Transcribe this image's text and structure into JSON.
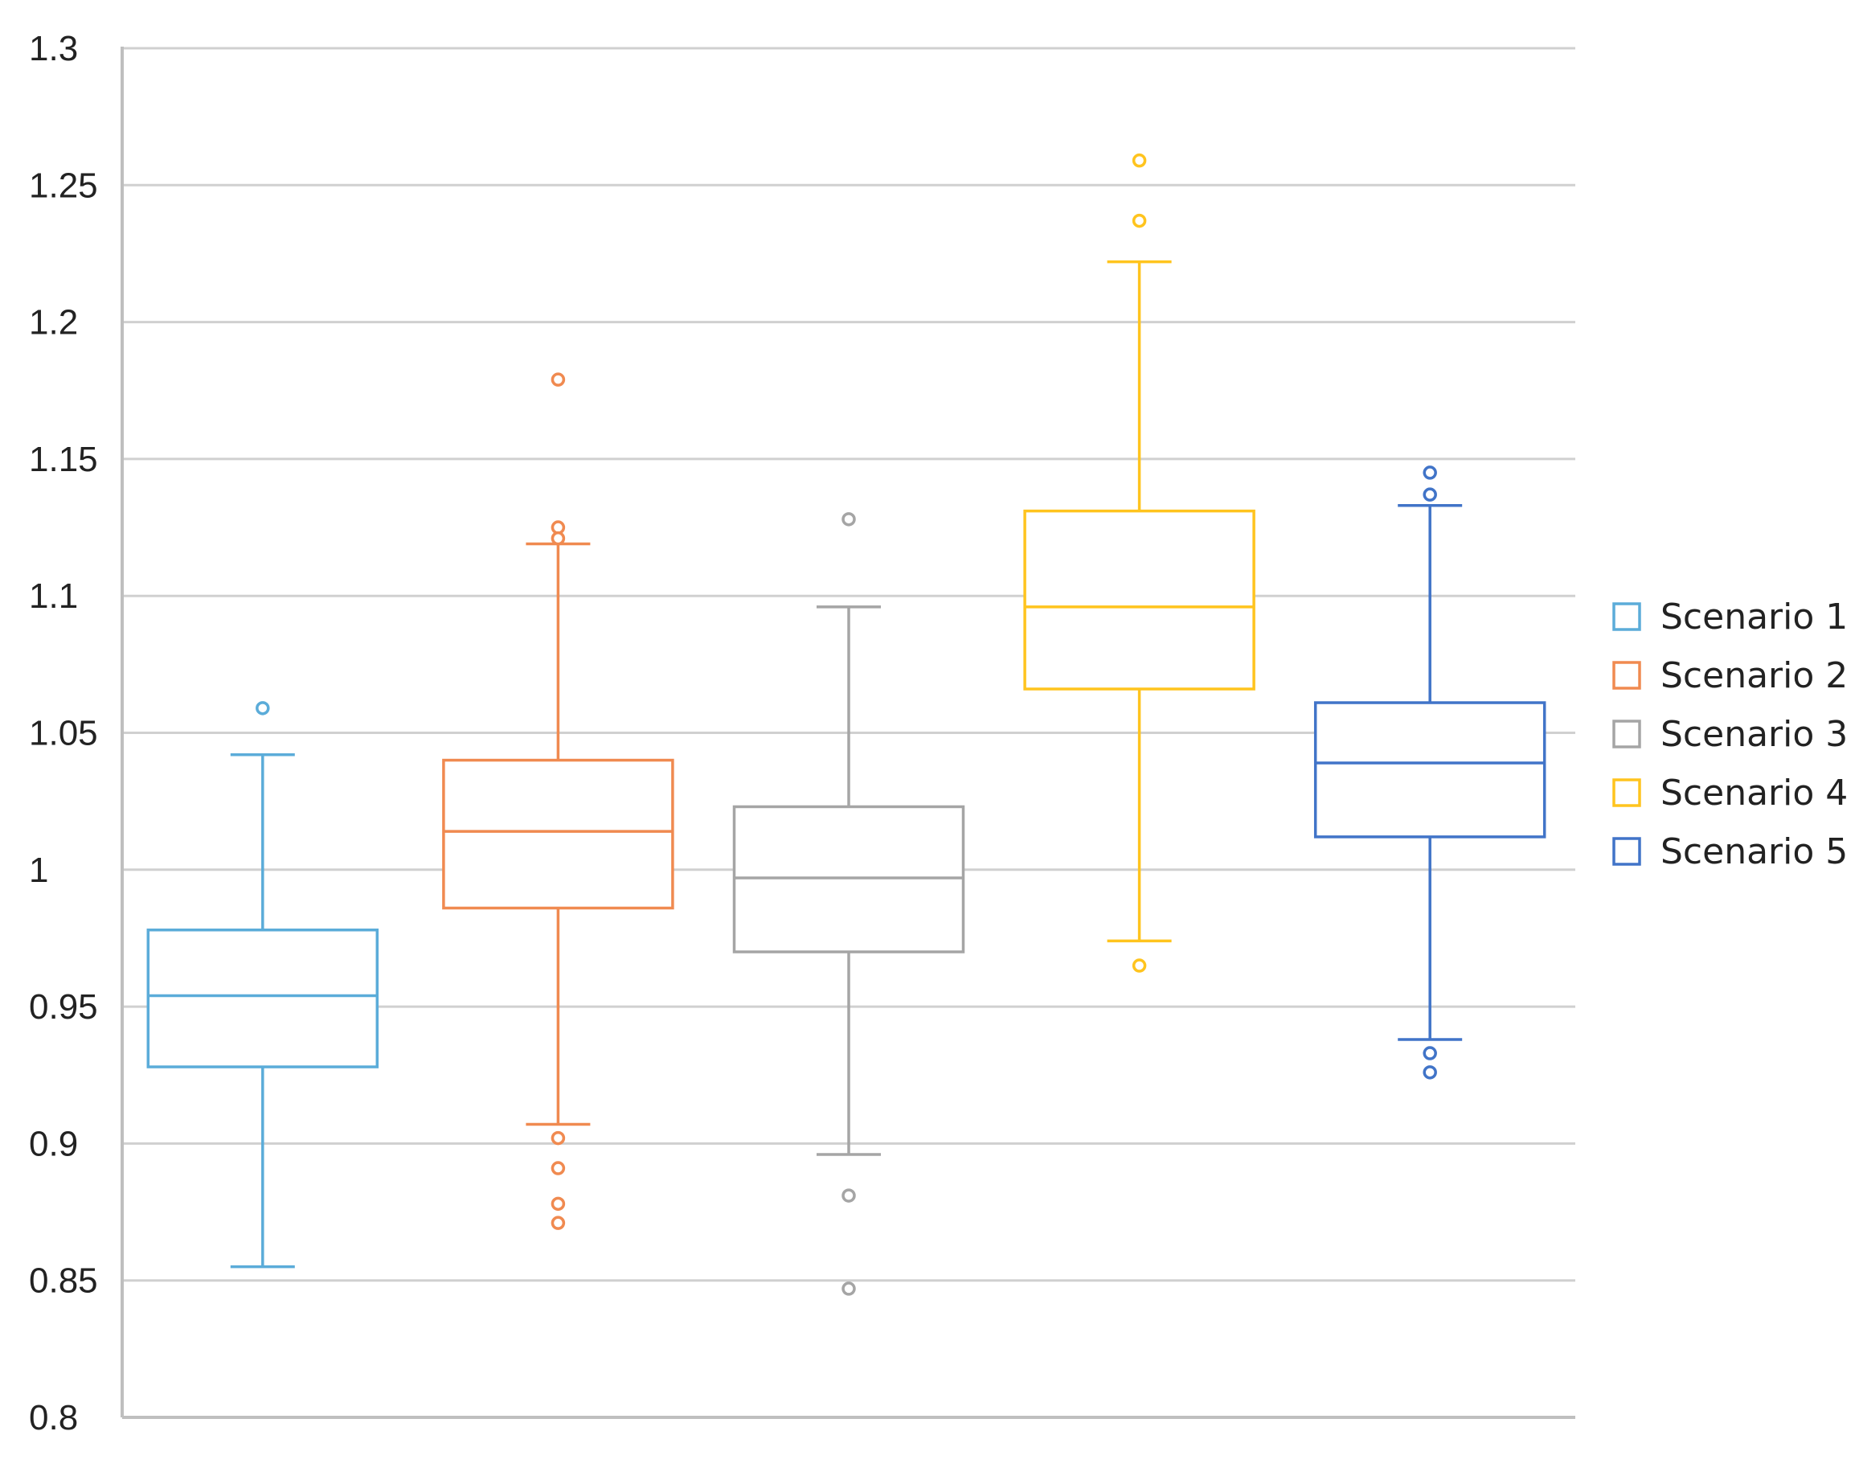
{
  "chart_data": {
    "type": "box",
    "title": "",
    "xlabel": "",
    "ylabel": "",
    "ylim": [
      0.8,
      1.3
    ],
    "y_ticks": [
      "0.8",
      "0.85",
      "0.9",
      "0.95",
      "1",
      "1.05",
      "1.1",
      "1.15",
      "1.2",
      "1.25",
      "1.3"
    ],
    "grid": "horizontal",
    "legend_position": "right",
    "series": [
      {
        "name": "Scenario 1",
        "color": "#5BACD9",
        "whisker_low": 0.855,
        "q1": 0.928,
        "median": 0.954,
        "q3": 0.978,
        "whisker_high": 1.042,
        "outliers": [
          1.059
        ]
      },
      {
        "name": "Scenario 2",
        "color": "#F08A50",
        "whisker_low": 0.907,
        "q1": 0.986,
        "median": 1.014,
        "q3": 1.04,
        "whisker_high": 1.119,
        "outliers": [
          1.179,
          1.125,
          1.121,
          0.902,
          0.891,
          0.878,
          0.871
        ]
      },
      {
        "name": "Scenario 3",
        "color": "#A5A5A5",
        "whisker_low": 0.896,
        "q1": 0.97,
        "median": 0.997,
        "q3": 1.023,
        "whisker_high": 1.096,
        "outliers": [
          1.128,
          0.881,
          0.847
        ]
      },
      {
        "name": "Scenario 4",
        "color": "#FFC41E",
        "whisker_low": 0.974,
        "q1": 1.066,
        "median": 1.096,
        "q3": 1.131,
        "whisker_high": 1.222,
        "outliers": [
          1.259,
          1.237,
          0.965
        ]
      },
      {
        "name": "Scenario 5",
        "color": "#4174C8",
        "whisker_low": 0.938,
        "q1": 1.012,
        "median": 1.039,
        "q3": 1.061,
        "whisker_high": 1.133,
        "outliers": [
          1.145,
          1.137,
          0.933,
          0.926
        ]
      }
    ]
  }
}
